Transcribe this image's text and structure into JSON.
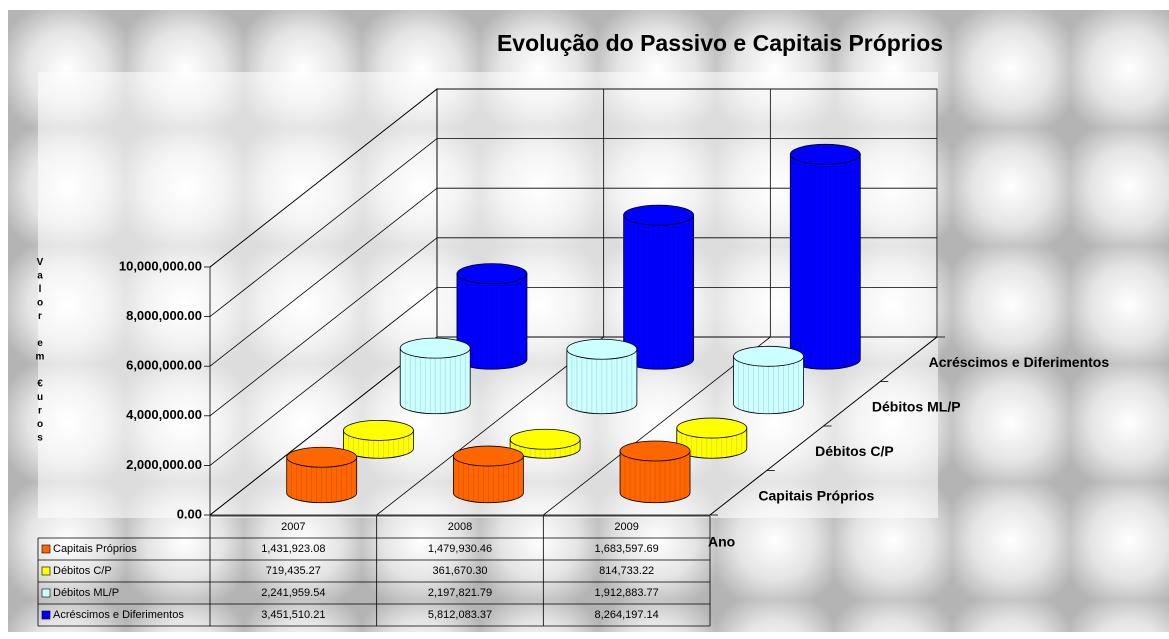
{
  "chart_data": {
    "type": "bar3d",
    "title": "Evolução do Passivo e Capitais Próprios",
    "y_label": "Valor em €uros",
    "x_label": "Ano",
    "categories": [
      "2007",
      "2008",
      "2009"
    ],
    "series": [
      {
        "name": "Capitais Próprios",
        "color": "#ff6600",
        "values": [
          1431923.08,
          1479930.46,
          1683597.69
        ],
        "value_labels": [
          "1,431,923.08",
          "1,479,930.46",
          "1,683,597.69"
        ]
      },
      {
        "name": "Débitos C/P",
        "color": "#ffff00",
        "values": [
          719435.27,
          361670.3,
          814733.22
        ],
        "value_labels": [
          "719,435.27",
          "361,670.30",
          "814,733.22"
        ]
      },
      {
        "name": "Débitos ML/P",
        "color": "#ccffff",
        "values": [
          2241959.54,
          2197821.79,
          1912883.77
        ],
        "value_labels": [
          "2,241,959.54",
          "2,197,821.79",
          "1,912,883.77"
        ]
      },
      {
        "name": "Acréscimos e Diferimentos",
        "color": "#0000ff",
        "values": [
          3451510.21,
          5812083.37,
          8264197.14
        ],
        "value_labels": [
          "3,451,510.21",
          "5,812,083.37",
          "8,264,197.14"
        ]
      }
    ],
    "ylim": [
      0,
      10000000
    ],
    "yticks": [
      {
        "value": 0,
        "label": "0.00"
      },
      {
        "value": 2000000,
        "label": "2,000,000.00"
      },
      {
        "value": 4000000,
        "label": "4,000,000.00"
      },
      {
        "value": 6000000,
        "label": "6,000,000.00"
      },
      {
        "value": 8000000,
        "label": "8,000,000.00"
      },
      {
        "value": 10000000,
        "label": "10,000,000.00"
      }
    ],
    "grid": true
  }
}
